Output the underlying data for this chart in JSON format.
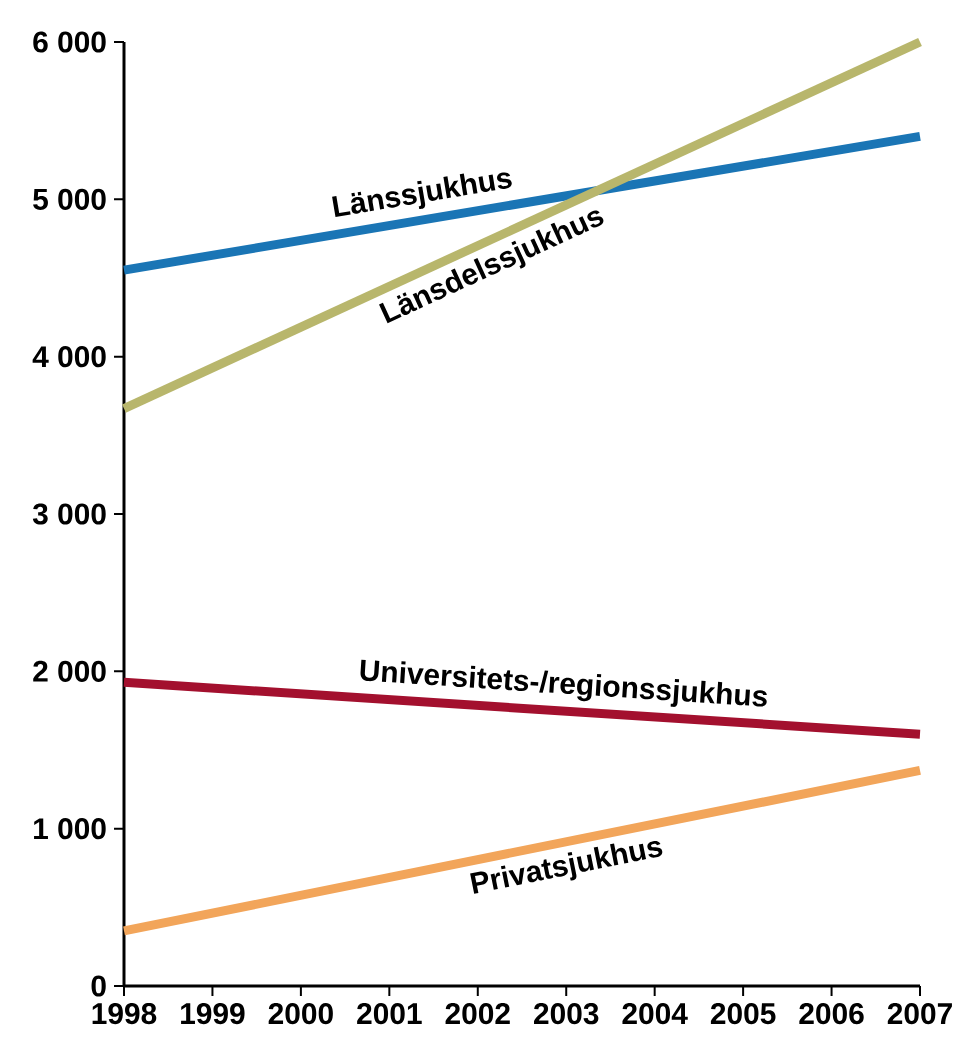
{
  "chart_data": {
    "type": "line",
    "x": [
      1998,
      2007
    ],
    "series": [
      {
        "name": "Länssjukhus",
        "color": "#1a75b5",
        "values": [
          4550,
          5400
        ]
      },
      {
        "name": "Länsdelssjukhus",
        "color": "#b8b66c",
        "values": [
          3670,
          6000
        ]
      },
      {
        "name": "Universitets-/regionssjukhus",
        "color": "#a3102e",
        "values": [
          1930,
          1600
        ]
      },
      {
        "name": "Privatsjukhus",
        "color": "#f2a55a",
        "values": [
          350,
          1370
        ]
      }
    ],
    "xlim": [
      1998,
      2007
    ],
    "xticks": [
      1998,
      1999,
      2000,
      2001,
      2002,
      2003,
      2004,
      2005,
      2006,
      2007
    ],
    "ylim": [
      0,
      6000
    ],
    "yticks": [
      0,
      {
        "value": 1000,
        "label": "1 000"
      },
      {
        "value": 2000,
        "label": "2 000"
      },
      {
        "value": 3000,
        "label": "3 000"
      },
      {
        "value": 4000,
        "label": "4 000"
      },
      {
        "value": 5000,
        "label": "5 000"
      },
      {
        "value": 6000,
        "label": "6 000"
      }
    ],
    "grid": false,
    "marker": "none",
    "line_style": "solid"
  }
}
